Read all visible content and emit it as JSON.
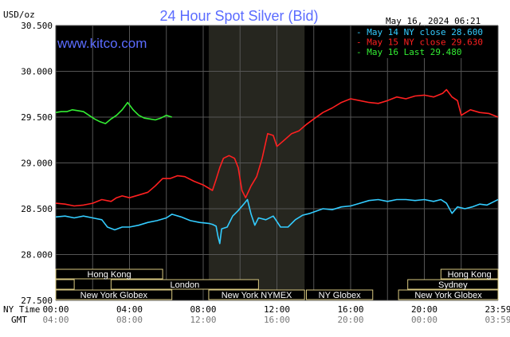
{
  "header": {
    "title": "24 Hour Spot Silver (Bid)",
    "unit_label": "USD/oz",
    "timestamp": "May 16, 2024 06:21",
    "watermark": "www.kitco.com"
  },
  "legend": [
    {
      "label": "May 14 NY close 28.600",
      "color": "#33ccff"
    },
    {
      "label": "May 15 NY close 29.630",
      "color": "#ff2020"
    },
    {
      "label": "May 16 Last 29.480",
      "color": "#33ee33"
    }
  ],
  "axis_labels": {
    "ny_time": "NY Time",
    "gmt": "GMT"
  },
  "x_ticks": [
    {
      "hour": 0,
      "ny": "00:00",
      "gmt": "04:00"
    },
    {
      "hour": 4,
      "ny": "04:00",
      "gmt": "08:00"
    },
    {
      "hour": 8,
      "ny": "08:00",
      "gmt": "12:00"
    },
    {
      "hour": 12,
      "ny": "12:00",
      "gmt": "16:00"
    },
    {
      "hour": 16,
      "ny": "16:00",
      "gmt": "20:00"
    },
    {
      "hour": 20,
      "ny": "20:00",
      "gmt": "00:00"
    },
    {
      "hour": 24,
      "ny": "23:59",
      "gmt": "03:59"
    }
  ],
  "y_ticks": [
    "27.500",
    "28.000",
    "28.500",
    "29.000",
    "29.500",
    "30.000",
    "30.500"
  ],
  "sessions": [
    {
      "name": "Hong Kong",
      "start": 0,
      "end": 5.8,
      "row": 0
    },
    {
      "name": "Hong Kong",
      "start": 20.9,
      "end": 24,
      "row": 0
    },
    {
      "name": "",
      "start": 0,
      "end": 1.0,
      "row": 1
    },
    {
      "name": "London",
      "start": 3.0,
      "end": 11.0,
      "row": 1
    },
    {
      "name": "Sydney",
      "start": 19.1,
      "end": 24,
      "row": 1
    },
    {
      "name": "New York Globex",
      "start": 0,
      "end": 6.3,
      "row": 2
    },
    {
      "name": "New York NYMEX",
      "start": 8.3,
      "end": 13.5,
      "row": 2
    },
    {
      "name": "NY Globex",
      "start": 13.6,
      "end": 17.2,
      "row": 2
    },
    {
      "name": "New York Globex",
      "start": 18.6,
      "end": 24,
      "row": 2
    }
  ],
  "chart_data": {
    "type": "line",
    "title": "24 Hour Spot Silver (Bid)",
    "ylabel": "USD/oz",
    "xlabel": "NY Time",
    "x_unit": "hours NY time",
    "xlim": [
      0,
      24
    ],
    "ylim": [
      27.5,
      30.5
    ],
    "y_tick_step": 0.5,
    "grid": true,
    "legend_position": "top-right",
    "highlight_span": [
      8.3,
      13.5
    ],
    "series": [
      {
        "name": "May 14 NY close 28.600",
        "color": "#33ccff",
        "points": [
          [
            0,
            28.41
          ],
          [
            0.5,
            28.42
          ],
          [
            1,
            28.4
          ],
          [
            1.5,
            28.42
          ],
          [
            2,
            28.4
          ],
          [
            2.5,
            28.38
          ],
          [
            2.8,
            28.3
          ],
          [
            3.2,
            28.27
          ],
          [
            3.6,
            28.3
          ],
          [
            4,
            28.3
          ],
          [
            4.5,
            28.32
          ],
          [
            5,
            28.35
          ],
          [
            5.5,
            28.37
          ],
          [
            6,
            28.4
          ],
          [
            6.3,
            28.44
          ],
          [
            6.8,
            28.41
          ],
          [
            7.3,
            28.37
          ],
          [
            7.8,
            28.35
          ],
          [
            8.3,
            28.34
          ],
          [
            8.5,
            28.33
          ],
          [
            8.7,
            28.31
          ],
          [
            8.8,
            28.2
          ],
          [
            8.9,
            28.12
          ],
          [
            9.0,
            28.28
          ],
          [
            9.3,
            28.3
          ],
          [
            9.6,
            28.42
          ],
          [
            9.9,
            28.48
          ],
          [
            10.2,
            28.55
          ],
          [
            10.4,
            28.6
          ],
          [
            10.6,
            28.44
          ],
          [
            10.8,
            28.32
          ],
          [
            11.0,
            28.4
          ],
          [
            11.4,
            28.38
          ],
          [
            11.8,
            28.42
          ],
          [
            12.2,
            28.3
          ],
          [
            12.6,
            28.3
          ],
          [
            13.0,
            28.38
          ],
          [
            13.4,
            28.43
          ],
          [
            13.8,
            28.45
          ],
          [
            14.5,
            28.5
          ],
          [
            15.0,
            28.49
          ],
          [
            15.5,
            28.52
          ],
          [
            16.0,
            28.53
          ],
          [
            16.5,
            28.56
          ],
          [
            17.0,
            28.59
          ],
          [
            17.5,
            28.6
          ],
          [
            18.0,
            28.58
          ],
          [
            18.5,
            28.6
          ],
          [
            19.0,
            28.6
          ],
          [
            19.5,
            28.59
          ],
          [
            20.0,
            28.6
          ],
          [
            20.5,
            28.58
          ],
          [
            20.9,
            28.6
          ],
          [
            21.2,
            28.56
          ],
          [
            21.5,
            28.45
          ],
          [
            21.8,
            28.52
          ],
          [
            22.2,
            28.5
          ],
          [
            22.6,
            28.52
          ],
          [
            23.0,
            28.55
          ],
          [
            23.4,
            28.54
          ],
          [
            23.8,
            28.58
          ],
          [
            24,
            28.6
          ]
        ]
      },
      {
        "name": "May 15 NY close 29.630",
        "color": "#ff2020",
        "points": [
          [
            0,
            28.56
          ],
          [
            0.5,
            28.55
          ],
          [
            1,
            28.53
          ],
          [
            1.5,
            28.54
          ],
          [
            2,
            28.56
          ],
          [
            2.5,
            28.6
          ],
          [
            3,
            28.58
          ],
          [
            3.3,
            28.62
          ],
          [
            3.6,
            28.64
          ],
          [
            4,
            28.62
          ],
          [
            4.5,
            28.65
          ],
          [
            5,
            28.68
          ],
          [
            5.4,
            28.75
          ],
          [
            5.8,
            28.83
          ],
          [
            6.2,
            28.83
          ],
          [
            6.6,
            28.86
          ],
          [
            7.0,
            28.85
          ],
          [
            7.5,
            28.8
          ],
          [
            8.0,
            28.76
          ],
          [
            8.5,
            28.7
          ],
          [
            8.7,
            28.82
          ],
          [
            8.9,
            28.95
          ],
          [
            9.1,
            29.05
          ],
          [
            9.4,
            29.08
          ],
          [
            9.7,
            29.05
          ],
          [
            9.9,
            28.95
          ],
          [
            10.1,
            28.7
          ],
          [
            10.3,
            28.62
          ],
          [
            10.6,
            28.75
          ],
          [
            10.9,
            28.85
          ],
          [
            11.2,
            29.05
          ],
          [
            11.5,
            29.32
          ],
          [
            11.8,
            29.3
          ],
          [
            12.0,
            29.18
          ],
          [
            12.4,
            29.25
          ],
          [
            12.8,
            29.32
          ],
          [
            13.2,
            29.35
          ],
          [
            13.6,
            29.42
          ],
          [
            14.0,
            29.48
          ],
          [
            14.5,
            29.55
          ],
          [
            15.0,
            29.6
          ],
          [
            15.5,
            29.66
          ],
          [
            16.0,
            29.7
          ],
          [
            16.5,
            29.68
          ],
          [
            17.0,
            29.66
          ],
          [
            17.5,
            29.65
          ],
          [
            18.0,
            29.68
          ],
          [
            18.5,
            29.72
          ],
          [
            19.0,
            29.7
          ],
          [
            19.5,
            29.73
          ],
          [
            20.0,
            29.74
          ],
          [
            20.5,
            29.72
          ],
          [
            21.0,
            29.76
          ],
          [
            21.2,
            29.8
          ],
          [
            21.5,
            29.72
          ],
          [
            21.8,
            29.68
          ],
          [
            22.0,
            29.52
          ],
          [
            22.5,
            29.58
          ],
          [
            23.0,
            29.55
          ],
          [
            23.5,
            29.54
          ],
          [
            24,
            29.5
          ]
        ]
      },
      {
        "name": "May 16 Last 29.480",
        "color": "#33ee33",
        "points": [
          [
            0,
            29.55
          ],
          [
            0.3,
            29.56
          ],
          [
            0.6,
            29.56
          ],
          [
            0.9,
            29.58
          ],
          [
            1.2,
            29.57
          ],
          [
            1.5,
            29.56
          ],
          [
            1.8,
            29.52
          ],
          [
            2.1,
            29.48
          ],
          [
            2.4,
            29.45
          ],
          [
            2.7,
            29.43
          ],
          [
            3.0,
            29.48
          ],
          [
            3.3,
            29.52
          ],
          [
            3.6,
            29.58
          ],
          [
            3.9,
            29.66
          ],
          [
            4.2,
            29.58
          ],
          [
            4.5,
            29.52
          ],
          [
            4.8,
            29.49
          ],
          [
            5.1,
            29.48
          ],
          [
            5.4,
            29.47
          ],
          [
            5.7,
            29.49
          ],
          [
            6.0,
            29.52
          ],
          [
            6.3,
            29.5
          ]
        ]
      }
    ]
  }
}
